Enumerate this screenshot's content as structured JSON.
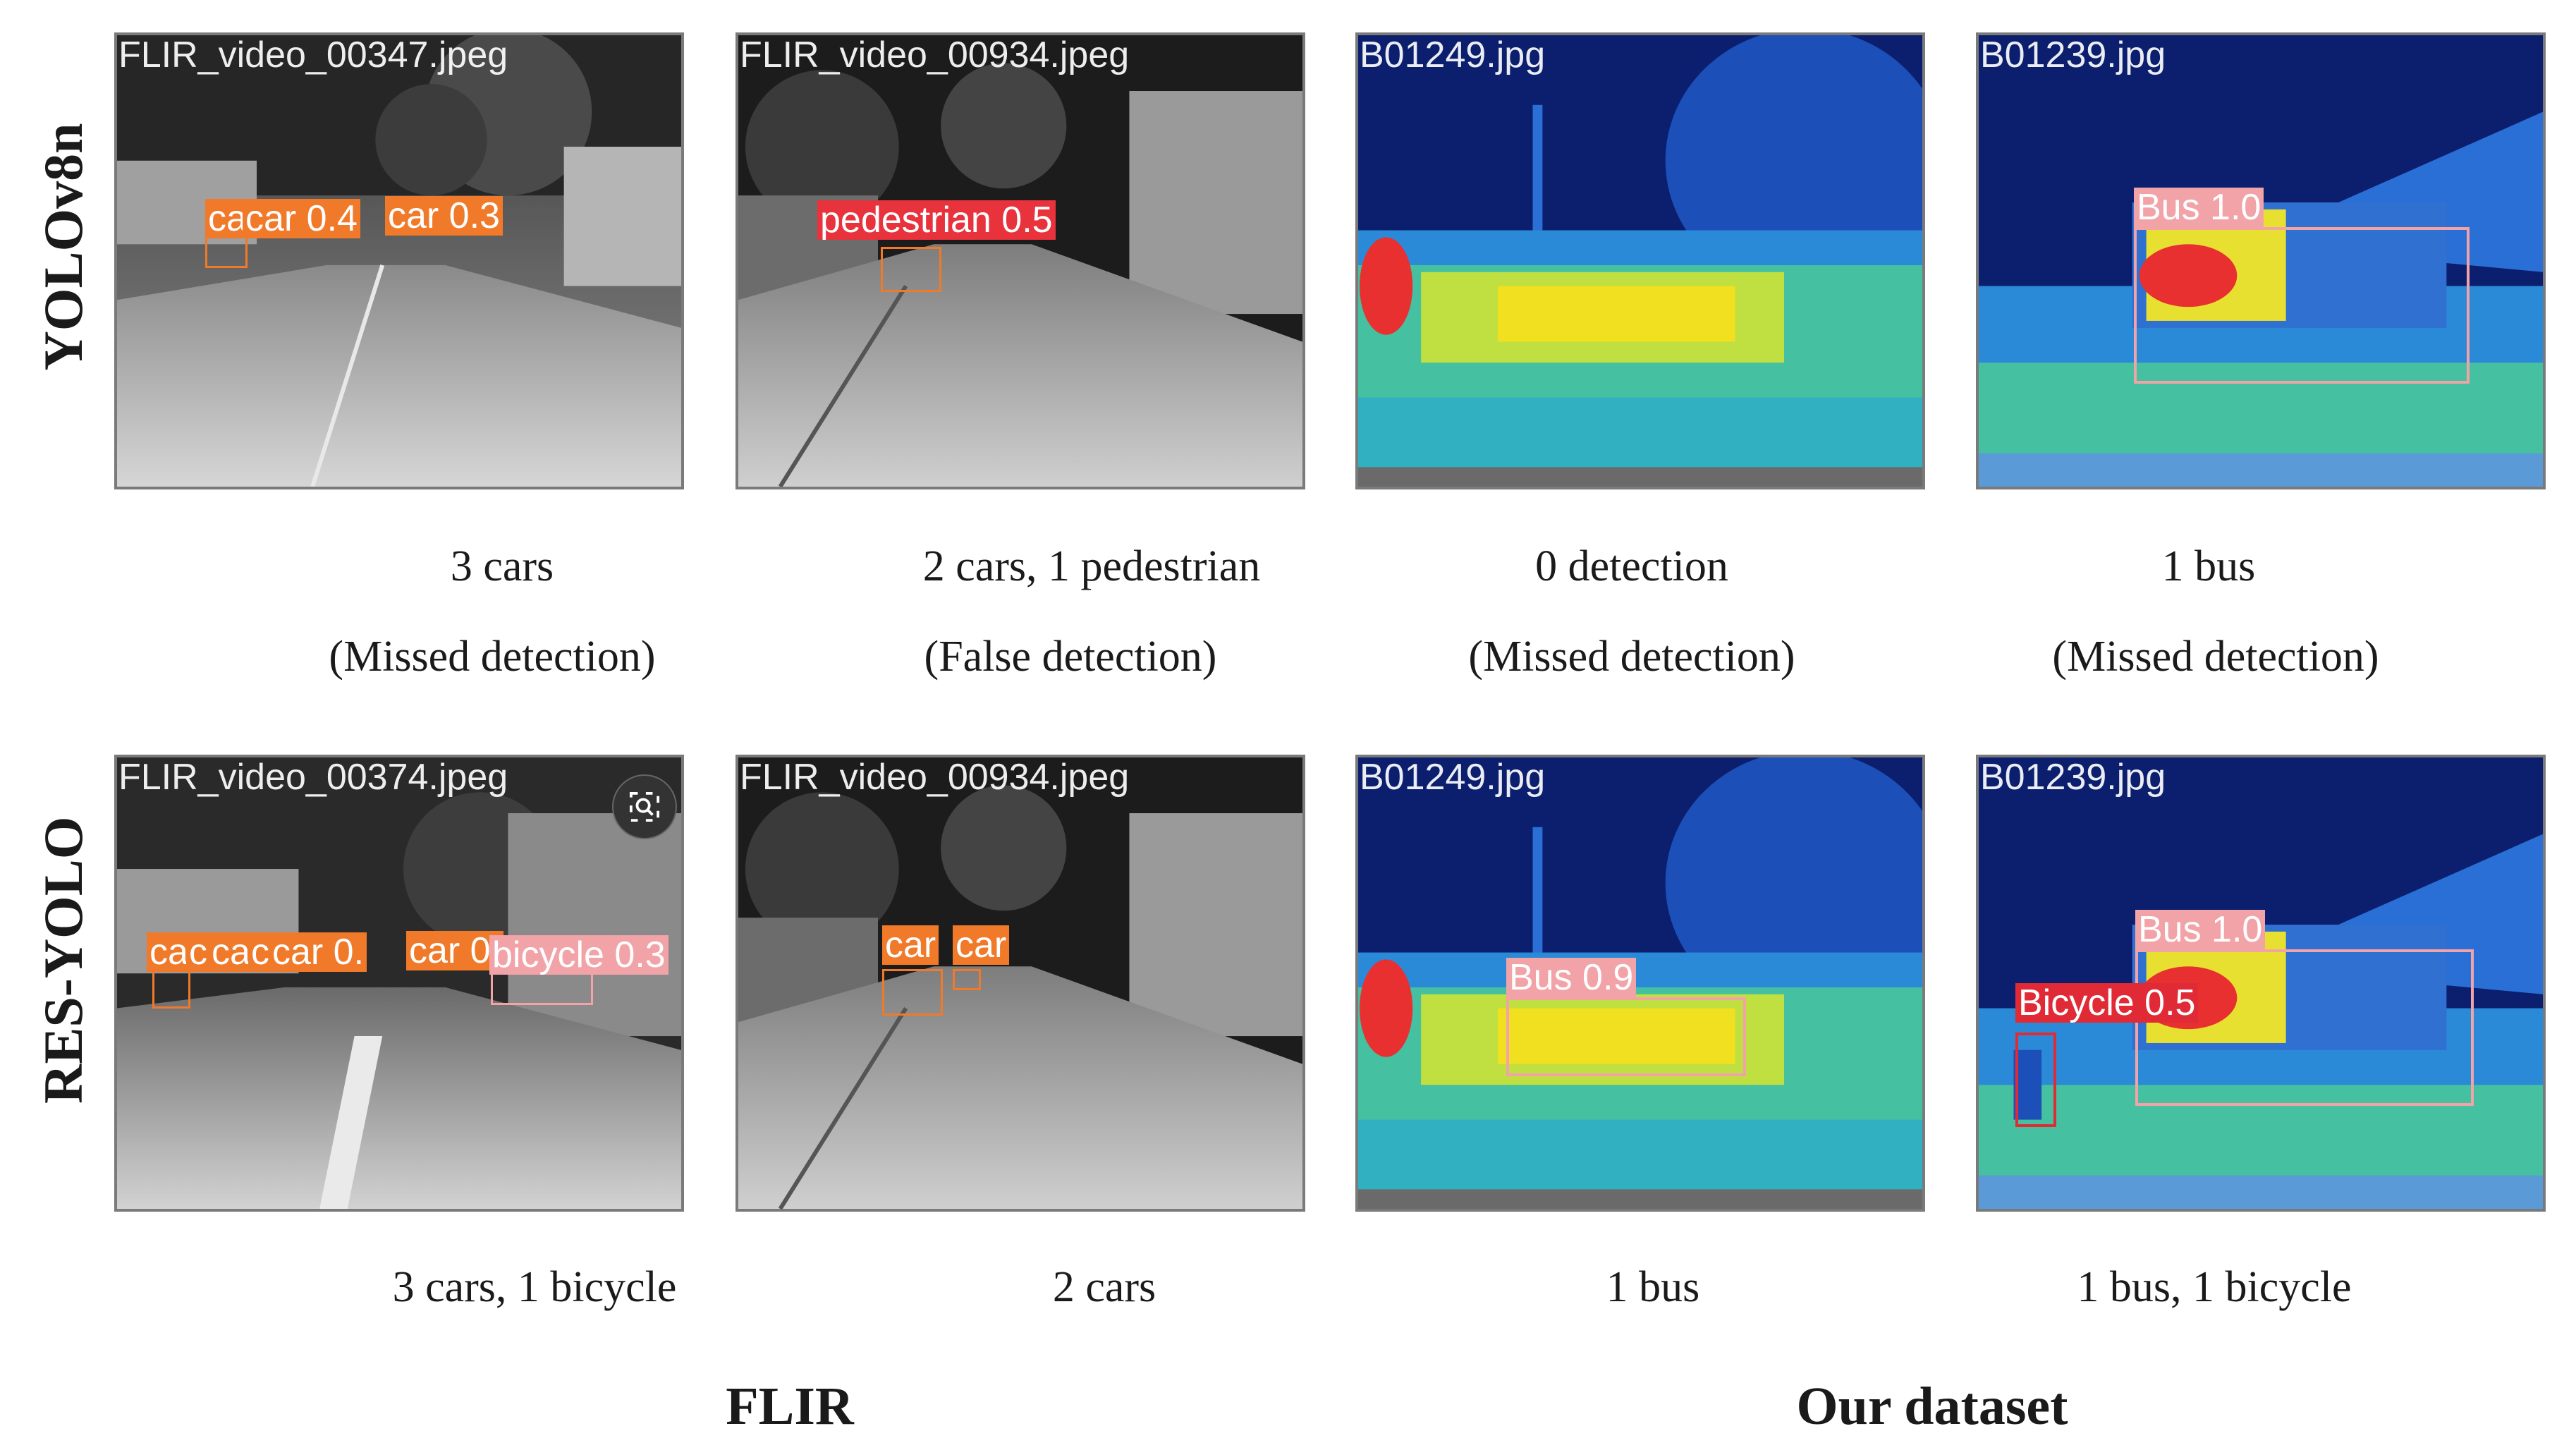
{
  "row_labels": {
    "top": "YOLOv8n",
    "bottom": "RES-YOLO"
  },
  "group_labels": {
    "left": "FLIR",
    "right": "Our dataset"
  },
  "top_row": [
    {
      "file": "FLIR_video_00347.jpeg",
      "caption": "3 cars",
      "note": "(Missed detection)",
      "detections": [
        "ca",
        "car 0.4",
        "car 0.3"
      ]
    },
    {
      "file": "FLIR_video_00934.jpeg",
      "caption": "2 cars, 1 pedestrian",
      "note": "(False detection)",
      "detections": [
        "pedestrian 0.5"
      ]
    },
    {
      "file": "B01249.jpg",
      "caption": "0 detection",
      "note": "(Missed detection)",
      "detections": []
    },
    {
      "file": "B01239.jpg",
      "caption": "1 bus",
      "note": "(Missed detection)",
      "detections": [
        "Bus 1.0"
      ]
    }
  ],
  "bottom_row": [
    {
      "file": "FLIR_video_00374.jpeg",
      "caption": "3 cars, 1 bicycle",
      "detections": [
        "ca",
        "c",
        "ca",
        "c",
        "car 0.",
        "car 0.",
        "bicycle 0.3"
      ]
    },
    {
      "file": "FLIR_video_00934.jpeg",
      "caption": "2 cars",
      "detections": [
        "car",
        "car"
      ]
    },
    {
      "file": "B01249.jpg",
      "caption": "1 bus",
      "detections": [
        "Bus 0.9"
      ]
    },
    {
      "file": "B01239.jpg",
      "caption": "1 bus, 1 bicycle",
      "detections": [
        "Bus 1.0",
        "Bicycle 0.5"
      ]
    }
  ],
  "colors": {
    "car": "#f07a2a",
    "pedestrian": "#e8323c",
    "bus": "#f2a3a8",
    "bicycle": "#e02a36",
    "thermal_sky": "#0b1f6e",
    "thermal_warm": "#f5e21a"
  },
  "icons": {
    "magnifier": "magnifier-icon"
  }
}
